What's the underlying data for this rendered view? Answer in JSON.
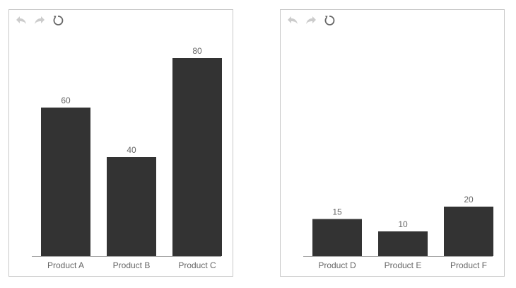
{
  "colors": {
    "bar": "#333333",
    "axis": "#aaaaaa",
    "label": "#666666",
    "icon_disabled": "#cccccc",
    "icon_active": "#666666"
  },
  "toolbar": [
    {
      "name": "undo-icon",
      "enabled": false
    },
    {
      "name": "redo-icon",
      "enabled": false
    },
    {
      "name": "reset-icon",
      "enabled": true
    }
  ],
  "chart_data": [
    {
      "type": "bar",
      "categories": [
        "Product A",
        "Product B",
        "Product C"
      ],
      "values": [
        60,
        40,
        80
      ],
      "ylim": [
        0,
        90
      ],
      "grid": false,
      "data_labels": true
    },
    {
      "type": "bar",
      "categories": [
        "Product D",
        "Product E",
        "Product F"
      ],
      "values": [
        15,
        10,
        20
      ],
      "ylim": [
        0,
        90
      ],
      "grid": false,
      "data_labels": true
    }
  ]
}
